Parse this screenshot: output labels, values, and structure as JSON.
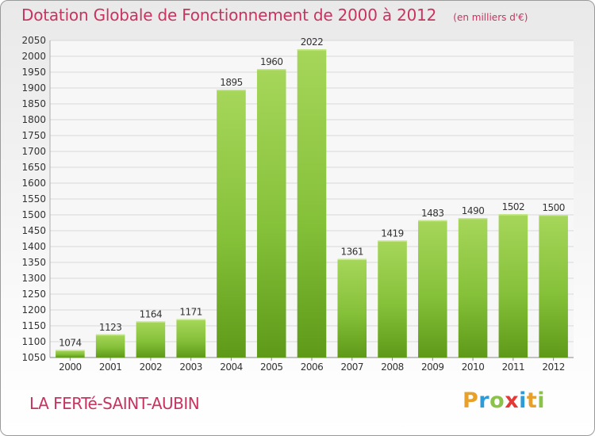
{
  "chart_data": {
    "type": "bar",
    "title": "Dotation Globale de Fonctionnement de 2000 à 2012",
    "subtitle": "(en milliers d'€)",
    "categories": [
      "2000",
      "2001",
      "2002",
      "2003",
      "2004",
      "2005",
      "2006",
      "2007",
      "2008",
      "2009",
      "2010",
      "2011",
      "2012"
    ],
    "values": [
      1074,
      1123,
      1164,
      1171,
      1895,
      1960,
      2022,
      1361,
      1419,
      1483,
      1490,
      1502,
      1500
    ],
    "ylim": [
      1050,
      2050
    ],
    "yticks": [
      1050,
      1100,
      1150,
      1200,
      1250,
      1300,
      1350,
      1400,
      1450,
      1500,
      1550,
      1600,
      1650,
      1700,
      1750,
      1800,
      1850,
      1900,
      1950,
      2000,
      2050
    ],
    "grid": true,
    "bar_color": "#8cc63f"
  },
  "commune": "LA FERTé-SAINT-AUBIN",
  "logo": {
    "letters": [
      "P",
      "r",
      "o",
      "x",
      "i",
      "t",
      "i"
    ],
    "colors": [
      "#e8a02a",
      "#2e9bd6",
      "#8bc34a",
      "#e53935",
      "#2e9bd6",
      "#e8a02a",
      "#8bc34a"
    ]
  }
}
